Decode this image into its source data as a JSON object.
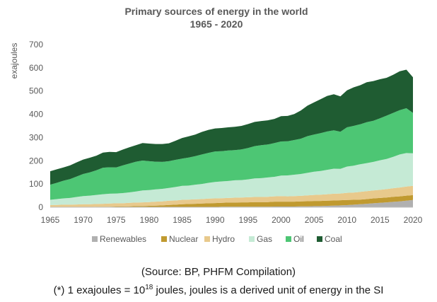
{
  "chart_data": {
    "type": "area",
    "stacked": true,
    "title": "Primary sources of energy in the world",
    "subtitle": "1965 - 2020",
    "ylabel": "exajoules",
    "xlabel": "",
    "ylim": [
      0,
      700
    ],
    "yticks": [
      0,
      100,
      200,
      300,
      400,
      500,
      600,
      700
    ],
    "xticks": [
      1965,
      1970,
      1975,
      1980,
      1985,
      1990,
      1995,
      2000,
      2005,
      2010,
      2015,
      2020
    ],
    "grid": false,
    "legend_position": "bottom",
    "x": [
      1965,
      1966,
      1967,
      1968,
      1969,
      1970,
      1971,
      1972,
      1973,
      1974,
      1975,
      1976,
      1977,
      1978,
      1979,
      1980,
      1981,
      1982,
      1983,
      1984,
      1985,
      1986,
      1987,
      1988,
      1989,
      1990,
      1991,
      1992,
      1993,
      1994,
      1995,
      1996,
      1997,
      1998,
      1999,
      2000,
      2001,
      2002,
      2003,
      2004,
      2005,
      2006,
      2007,
      2008,
      2009,
      2010,
      2011,
      2012,
      2013,
      2014,
      2015,
      2016,
      2017,
      2018,
      2019,
      2020
    ],
    "series": [
      {
        "name": "Renewables",
        "color": "#b0b0b0",
        "values": [
          0,
          0,
          0,
          0,
          0,
          0,
          0,
          0,
          0,
          0,
          0,
          0,
          0,
          0,
          0,
          0,
          0,
          0,
          1,
          1,
          1,
          1,
          1,
          1,
          1,
          1,
          2,
          2,
          2,
          2,
          2,
          2,
          2,
          2,
          3,
          3,
          3,
          3,
          4,
          4,
          5,
          5,
          6,
          7,
          8,
          9,
          11,
          13,
          15,
          17,
          19,
          21,
          23,
          25,
          28,
          31
        ]
      },
      {
        "name": "Nuclear",
        "color": "#c09a30",
        "values": [
          0,
          0,
          1,
          1,
          1,
          1,
          1,
          2,
          2,
          2,
          3,
          3,
          4,
          5,
          5,
          6,
          7,
          8,
          9,
          10,
          12,
          13,
          14,
          15,
          16,
          17,
          17,
          18,
          18,
          19,
          19,
          20,
          20,
          20,
          21,
          21,
          21,
          21,
          21,
          22,
          22,
          22,
          22,
          22,
          22,
          22,
          21,
          20,
          20,
          21,
          21,
          21,
          22,
          22,
          22,
          21
        ]
      },
      {
        "name": "Hydro",
        "color": "#e8c98c",
        "values": [
          9,
          10,
          10,
          10,
          11,
          12,
          12,
          12,
          13,
          14,
          14,
          14,
          15,
          15,
          16,
          16,
          17,
          17,
          18,
          18,
          19,
          19,
          19,
          19,
          20,
          20,
          20,
          20,
          21,
          21,
          22,
          22,
          22,
          23,
          23,
          24,
          23,
          24,
          24,
          25,
          26,
          27,
          28,
          29,
          29,
          31,
          31,
          33,
          34,
          34,
          35,
          36,
          37,
          38,
          39,
          40
        ]
      },
      {
        "name": "Gas",
        "color": "#c5ead5",
        "values": [
          23,
          25,
          27,
          29,
          32,
          35,
          37,
          39,
          41,
          42,
          42,
          44,
          45,
          48,
          51,
          52,
          53,
          54,
          55,
          58,
          60,
          60,
          63,
          65,
          68,
          71,
          72,
          73,
          75,
          75,
          77,
          80,
          81,
          83,
          84,
          88,
          90,
          92,
          94,
          97,
          100,
          102,
          105,
          108,
          106,
          113,
          116,
          119,
          121,
          123,
          127,
          130,
          135,
          142,
          144,
          140
        ]
      },
      {
        "name": "Oil",
        "color": "#4dc674",
        "values": [
          65,
          70,
          76,
          81,
          88,
          95,
          100,
          106,
          114,
          114,
          112,
          119,
          124,
          128,
          129,
          124,
          119,
          116,
          115,
          117,
          117,
          121,
          123,
          127,
          129,
          131,
          130,
          131,
          130,
          132,
          135,
          139,
          142,
          142,
          145,
          147,
          147,
          149,
          152,
          158,
          160,
          163,
          165,
          165,
          160,
          169,
          171,
          172,
          176,
          177,
          181,
          186,
          189,
          191,
          193,
          174
        ]
      },
      {
        "name": "Coal",
        "color": "#1f5c32",
        "values": [
          58,
          58,
          57,
          59,
          61,
          62,
          63,
          63,
          65,
          66,
          66,
          68,
          70,
          71,
          75,
          76,
          76,
          77,
          77,
          82,
          89,
          91,
          93,
          97,
          99,
          99,
          100,
          100,
          100,
          101,
          103,
          104,
          104,
          104,
          104,
          109,
          109,
          112,
          121,
          131,
          138,
          146,
          153,
          155,
          152,
          159,
          166,
          168,
          172,
          171,
          168,
          163,
          164,
          167,
          166,
          153
        ]
      }
    ]
  },
  "notes": {
    "source": "(Source: BP, PHFM Compilation)",
    "si_prefix": "(*) 1 exajoules = 10",
    "si_exponent": "18",
    "si_suffix": " joules, joules is a derived unit of energy in the SI"
  }
}
